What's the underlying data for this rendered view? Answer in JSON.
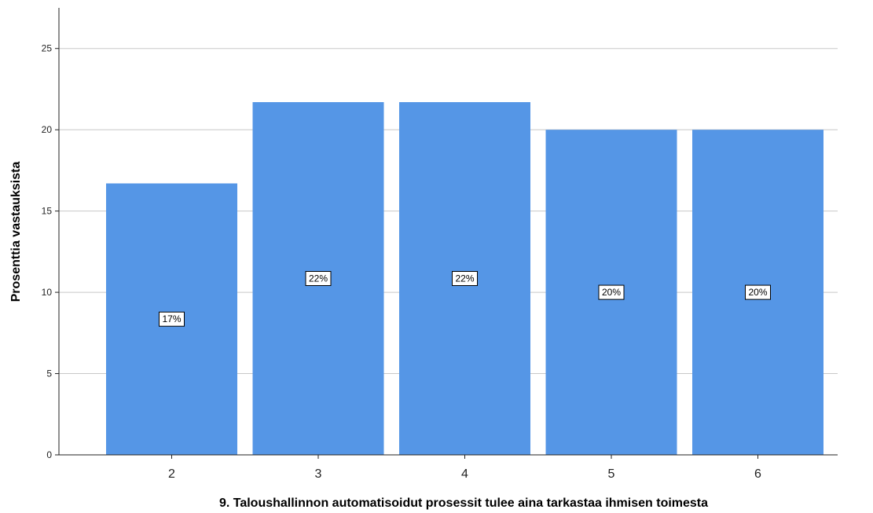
{
  "chart_data": {
    "type": "bar",
    "categories": [
      "2",
      "3",
      "4",
      "5",
      "6"
    ],
    "values": [
      16.7,
      21.7,
      21.7,
      20.0,
      20.0
    ],
    "data_labels": [
      "17%",
      "22%",
      "22%",
      "20%",
      "20%"
    ],
    "title": "",
    "xlabel": "9. Taloushallinnon automatisoidut prosessit tulee aina tarkastaa ihmisen toimesta",
    "ylabel": "Prosenttia vastauksista",
    "ylim": [
      0,
      27.5
    ],
    "yticks": [
      0,
      5,
      10,
      15,
      20,
      25
    ],
    "grid": true,
    "legend": "none",
    "bar_color": "#5596e6"
  }
}
